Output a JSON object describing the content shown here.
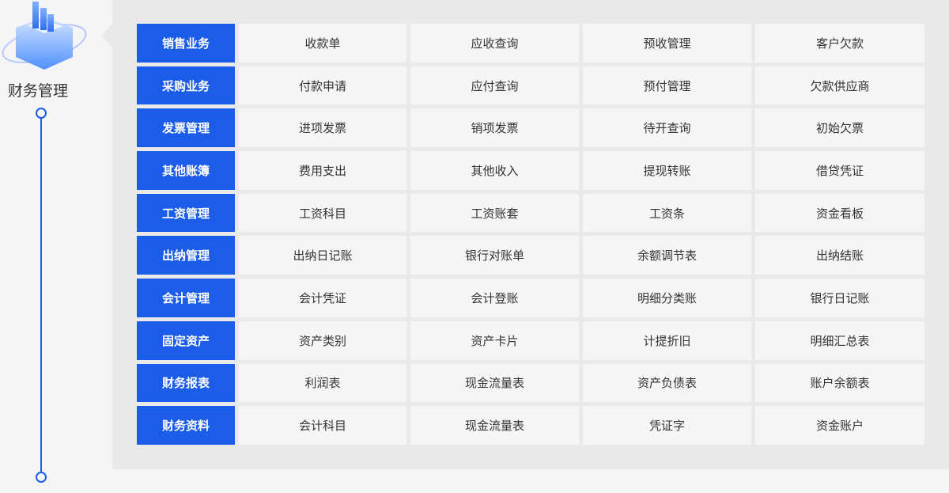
{
  "title": "财务管理",
  "colors": {
    "accent": "#1b5ce8",
    "panel": "#e9e9e9",
    "cell": "#f5f5f5"
  },
  "rows": [
    {
      "category": "销售业务",
      "items": [
        "收款单",
        "应收查询",
        "预收管理",
        "客户欠款"
      ]
    },
    {
      "category": "采购业务",
      "items": [
        "付款申请",
        "应付查询",
        "预付管理",
        "欠款供应商"
      ]
    },
    {
      "category": "发票管理",
      "items": [
        "进项发票",
        "销项发票",
        "待开查询",
        "初始欠票"
      ]
    },
    {
      "category": "其他账簿",
      "items": [
        "费用支出",
        "其他收入",
        "提现转账",
        "借贷凭证"
      ]
    },
    {
      "category": "工资管理",
      "items": [
        "工资科目",
        "工资账套",
        "工资条",
        "资金看板"
      ]
    },
    {
      "category": "出纳管理",
      "items": [
        "出纳日记账",
        "银行对账单",
        "余额调节表",
        "出纳结账"
      ]
    },
    {
      "category": "会计管理",
      "items": [
        "会计凭证",
        "会计登账",
        "明细分类账",
        "银行日记账"
      ]
    },
    {
      "category": "固定资产",
      "items": [
        "资产类别",
        "资产卡片",
        "计提折旧",
        "明细汇总表"
      ]
    },
    {
      "category": "财务报表",
      "items": [
        "利润表",
        "现金流量表",
        "资产负债表",
        "账户余额表"
      ]
    },
    {
      "category": "财务资料",
      "items": [
        "会计科目",
        "现金流量表",
        "凭证字",
        "资金账户"
      ]
    }
  ]
}
